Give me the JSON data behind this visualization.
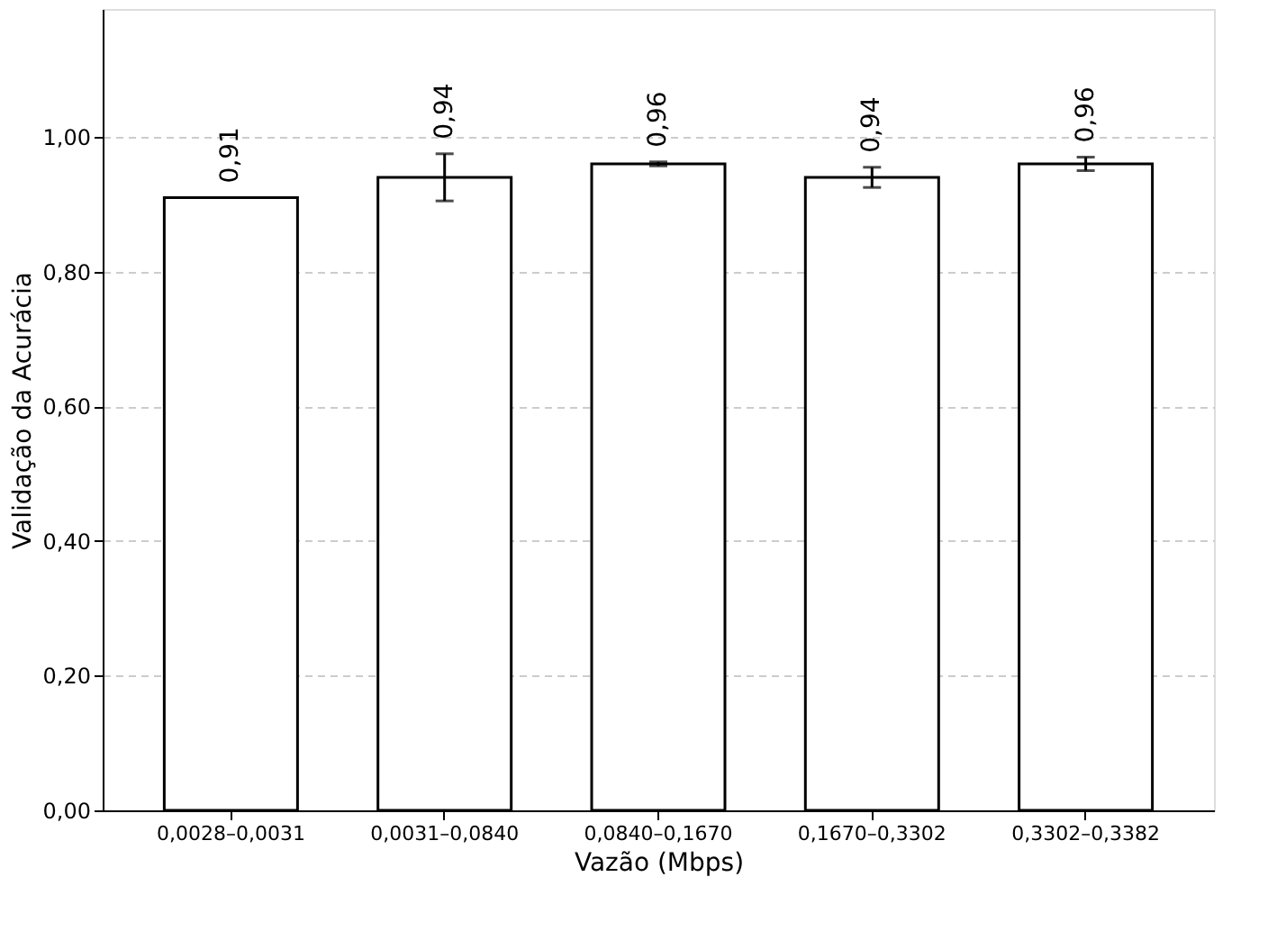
{
  "chart_data": {
    "type": "bar",
    "xlabel": "Vazão (Mbps)",
    "ylabel": "Validação da Acurácia",
    "categories": [
      "0,0028–0,0031",
      "0,0031–0,0840",
      "0,0840–0,1670",
      "0,1670–0,3302",
      "0,3302–0,3382"
    ],
    "values": [
      0.91,
      0.94,
      0.96,
      0.94,
      0.96
    ],
    "errors": [
      null,
      0.035,
      0.003,
      0.015,
      0.01
    ],
    "value_labels": [
      "0,91",
      "0,94",
      "0,96",
      "0,94",
      "0,96"
    ],
    "color": "#ffffff",
    "ylim": [
      0,
      1.19
    ],
    "yticks": [
      {
        "value": 0,
        "label": "0,00"
      },
      {
        "value": 0.2,
        "label": "0,20"
      },
      {
        "value": 0.4,
        "label": "0,40"
      },
      {
        "value": 0.6,
        "label": "0,60"
      },
      {
        "value": 0.8,
        "label": "0,80"
      },
      {
        "value": 1.0,
        "label": "1,00"
      }
    ],
    "grid": "y"
  }
}
